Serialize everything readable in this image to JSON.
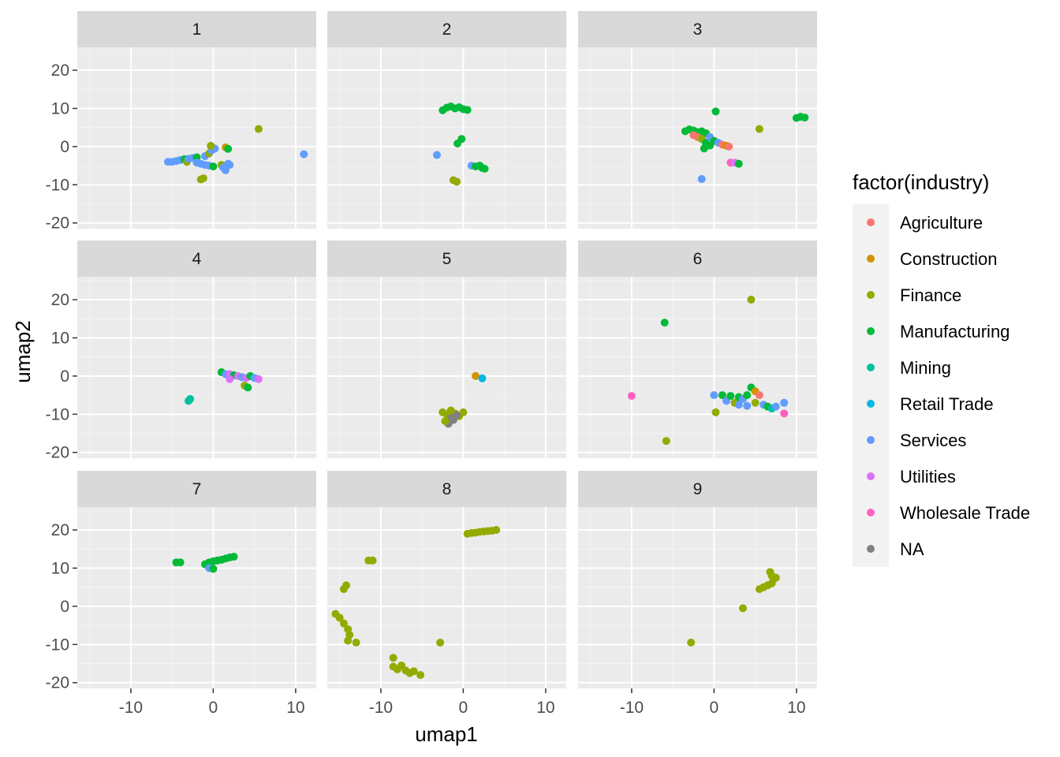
{
  "chart_data": {
    "type": "scatter",
    "facet_variable": "",
    "xlabel": "umap1",
    "ylabel": "umap2",
    "xlim": [
      -16.5,
      12.5
    ],
    "ylim": [
      -21.5,
      26
    ],
    "x_ticks": [
      -10,
      0,
      10
    ],
    "y_ticks": [
      -20,
      -10,
      0,
      10,
      20
    ],
    "grid": true,
    "legend": {
      "title": "factor(industry)",
      "placement": "right",
      "entries": [
        {
          "label": "Agriculture",
          "color": "#F8766D"
        },
        {
          "label": "Construction",
          "color": "#D39200"
        },
        {
          "label": "Finance",
          "color": "#93AA00"
        },
        {
          "label": "Manufacturing",
          "color": "#00BA38"
        },
        {
          "label": "Mining",
          "color": "#00C19F"
        },
        {
          "label": "Retail Trade",
          "color": "#00B9E3"
        },
        {
          "label": "Services",
          "color": "#619CFF"
        },
        {
          "label": "Utilities",
          "color": "#DB72FB"
        },
        {
          "label": "Wholesale Trade",
          "color": "#FF61C3"
        },
        {
          "label": "NA",
          "color": "#808080"
        }
      ]
    },
    "panels": [
      {
        "label": "1",
        "points": [
          {
            "x": -5.5,
            "y": -4,
            "s": "Services"
          },
          {
            "x": -5,
            "y": -4,
            "s": "Services"
          },
          {
            "x": -4.5,
            "y": -3.8,
            "s": "Services"
          },
          {
            "x": -4,
            "y": -3.5,
            "s": "Services"
          },
          {
            "x": -3.5,
            "y": -3.3,
            "s": "Manufacturing"
          },
          {
            "x": -3.2,
            "y": -4,
            "s": "Finance"
          },
          {
            "x": -3,
            "y": -3.2,
            "s": "Services"
          },
          {
            "x": -2.5,
            "y": -3,
            "s": "Services"
          },
          {
            "x": -2,
            "y": -2.8,
            "s": "Manufacturing"
          },
          {
            "x": -2,
            "y": -4.2,
            "s": "Services"
          },
          {
            "x": -1.5,
            "y": -4.5,
            "s": "Services"
          },
          {
            "x": -1,
            "y": -2.5,
            "s": "Services"
          },
          {
            "x": -1,
            "y": -4.8,
            "s": "Services"
          },
          {
            "x": -0.5,
            "y": -5,
            "s": "Services"
          },
          {
            "x": -0.5,
            "y": -1.8,
            "s": "Finance"
          },
          {
            "x": -0.2,
            "y": -1,
            "s": "Services"
          },
          {
            "x": 0,
            "y": -5.2,
            "s": "Manufacturing"
          },
          {
            "x": 0.2,
            "y": -0.5,
            "s": "Services"
          },
          {
            "x": -0.3,
            "y": 0.2,
            "s": "Finance"
          },
          {
            "x": 1,
            "y": -4.8,
            "s": "Finance"
          },
          {
            "x": 1.2,
            "y": -5.5,
            "s": "Services"
          },
          {
            "x": 1.5,
            "y": -6.2,
            "s": "Services"
          },
          {
            "x": 1.8,
            "y": -4.5,
            "s": "Services"
          },
          {
            "x": 1.5,
            "y": -0.2,
            "s": "Construction"
          },
          {
            "x": 1.8,
            "y": -0.6,
            "s": "Manufacturing"
          },
          {
            "x": 2,
            "y": -4.8,
            "s": "Services"
          },
          {
            "x": -1.5,
            "y": -8.6,
            "s": "Finance"
          },
          {
            "x": -1.2,
            "y": -8.3,
            "s": "Finance"
          },
          {
            "x": 5.5,
            "y": 4.6,
            "s": "Finance"
          },
          {
            "x": 11,
            "y": -2,
            "s": "Services"
          }
        ]
      },
      {
        "label": "2",
        "points": [
          {
            "x": -2.5,
            "y": 9.5,
            "s": "Manufacturing"
          },
          {
            "x": -2,
            "y": 10.2,
            "s": "Manufacturing"
          },
          {
            "x": -1.5,
            "y": 10.5,
            "s": "Manufacturing"
          },
          {
            "x": -1,
            "y": 10,
            "s": "Manufacturing"
          },
          {
            "x": -0.5,
            "y": 10.3,
            "s": "Manufacturing"
          },
          {
            "x": 0,
            "y": 9.8,
            "s": "Manufacturing"
          },
          {
            "x": 0.5,
            "y": 9.6,
            "s": "Manufacturing"
          },
          {
            "x": -0.2,
            "y": 2,
            "s": "Manufacturing"
          },
          {
            "x": -0.7,
            "y": 0.8,
            "s": "Manufacturing"
          },
          {
            "x": -3.2,
            "y": -2.2,
            "s": "Services"
          },
          {
            "x": 1,
            "y": -5,
            "s": "Services"
          },
          {
            "x": 1.5,
            "y": -5.2,
            "s": "Manufacturing"
          },
          {
            "x": 2,
            "y": -5,
            "s": "Manufacturing"
          },
          {
            "x": 2.3,
            "y": -5.6,
            "s": "Manufacturing"
          },
          {
            "x": 2.6,
            "y": -5.8,
            "s": "Manufacturing"
          },
          {
            "x": -1.2,
            "y": -8.8,
            "s": "Finance"
          },
          {
            "x": -0.8,
            "y": -9.2,
            "s": "Finance"
          }
        ]
      },
      {
        "label": "3",
        "points": [
          {
            "x": -3.5,
            "y": 4,
            "s": "Manufacturing"
          },
          {
            "x": -3,
            "y": 4.5,
            "s": "Manufacturing"
          },
          {
            "x": -2.5,
            "y": 4.2,
            "s": "Manufacturing"
          },
          {
            "x": -2,
            "y": 3.8,
            "s": "Manufacturing"
          },
          {
            "x": -1.5,
            "y": 4,
            "s": "Manufacturing"
          },
          {
            "x": -1,
            "y": 3.5,
            "s": "Manufacturing"
          },
          {
            "x": -2.5,
            "y": 3,
            "s": "Agriculture"
          },
          {
            "x": -2,
            "y": 2.5,
            "s": "Agriculture"
          },
          {
            "x": -1.5,
            "y": 2,
            "s": "Finance"
          },
          {
            "x": -1,
            "y": 1,
            "s": "Manufacturing"
          },
          {
            "x": -1.2,
            "y": -0.5,
            "s": "Manufacturing"
          },
          {
            "x": -0.5,
            "y": 2.5,
            "s": "Services"
          },
          {
            "x": 0,
            "y": 1.5,
            "s": "Manufacturing"
          },
          {
            "x": 0.5,
            "y": 1,
            "s": "Services"
          },
          {
            "x": 1,
            "y": 0.5,
            "s": "Agriculture"
          },
          {
            "x": 1.5,
            "y": 0.2,
            "s": "Construction"
          },
          {
            "x": 1.8,
            "y": 0,
            "s": "Agriculture"
          },
          {
            "x": -0.5,
            "y": 0.3,
            "s": "Manufacturing"
          },
          {
            "x": 0.2,
            "y": 9.2,
            "s": "Manufacturing"
          },
          {
            "x": 5.5,
            "y": 4.6,
            "s": "Finance"
          },
          {
            "x": 10,
            "y": 7.5,
            "s": "Manufacturing"
          },
          {
            "x": 10.5,
            "y": 7.8,
            "s": "Manufacturing"
          },
          {
            "x": 11,
            "y": 7.6,
            "s": "Manufacturing"
          },
          {
            "x": 2,
            "y": -4.2,
            "s": "Wholesale Trade"
          },
          {
            "x": 2.5,
            "y": -4.2,
            "s": "Utilities"
          },
          {
            "x": 3,
            "y": -4.5,
            "s": "Manufacturing"
          },
          {
            "x": -1.5,
            "y": -8.5,
            "s": "Services"
          }
        ]
      },
      {
        "label": "4",
        "points": [
          {
            "x": 1,
            "y": 1,
            "s": "Manufacturing"
          },
          {
            "x": 1.5,
            "y": 0.5,
            "s": "Services"
          },
          {
            "x": 2,
            "y": 0.5,
            "s": "Utilities"
          },
          {
            "x": 2.5,
            "y": 0.2,
            "s": "Manufacturing"
          },
          {
            "x": 3,
            "y": 0,
            "s": "Utilities"
          },
          {
            "x": 3.5,
            "y": -0.3,
            "s": "Services"
          },
          {
            "x": 4,
            "y": -0.5,
            "s": "Utilities"
          },
          {
            "x": 4.5,
            "y": 0,
            "s": "Manufacturing"
          },
          {
            "x": 5,
            "y": -0.5,
            "s": "Services"
          },
          {
            "x": 5.5,
            "y": -0.8,
            "s": "Utilities"
          },
          {
            "x": 2,
            "y": -0.8,
            "s": "Utilities"
          },
          {
            "x": 3.8,
            "y": -2.5,
            "s": "Finance"
          },
          {
            "x": 4.2,
            "y": -3,
            "s": "Manufacturing"
          },
          {
            "x": -3,
            "y": -6.5,
            "s": "Mining"
          },
          {
            "x": -2.8,
            "y": -6,
            "s": "Mining"
          }
        ]
      },
      {
        "label": "5",
        "points": [
          {
            "x": -2.5,
            "y": -9.5,
            "s": "Finance"
          },
          {
            "x": -2,
            "y": -10,
            "s": "Finance"
          },
          {
            "x": -1.5,
            "y": -9,
            "s": "Finance"
          },
          {
            "x": -1,
            "y": -9.8,
            "s": "Finance"
          },
          {
            "x": -0.5,
            "y": -10.5,
            "s": "Finance"
          },
          {
            "x": 0,
            "y": -9.5,
            "s": "Finance"
          },
          {
            "x": -1.5,
            "y": -11,
            "s": "NA"
          },
          {
            "x": -1.8,
            "y": -12.5,
            "s": "NA"
          },
          {
            "x": -1.2,
            "y": -11.5,
            "s": "NA"
          },
          {
            "x": -2.2,
            "y": -11.8,
            "s": "Finance"
          },
          {
            "x": -0.8,
            "y": -10.2,
            "s": "NA"
          },
          {
            "x": 1.5,
            "y": 0,
            "s": "Construction"
          },
          {
            "x": 2.3,
            "y": -0.6,
            "s": "Retail Trade"
          }
        ]
      },
      {
        "label": "6",
        "points": [
          {
            "x": 4.5,
            "y": 20,
            "s": "Finance"
          },
          {
            "x": -6,
            "y": 14,
            "s": "Manufacturing"
          },
          {
            "x": -10,
            "y": -5.2,
            "s": "Wholesale Trade"
          },
          {
            "x": 0,
            "y": -5,
            "s": "Services"
          },
          {
            "x": 1,
            "y": -5,
            "s": "Manufacturing"
          },
          {
            "x": 1.5,
            "y": -6.5,
            "s": "Services"
          },
          {
            "x": 2,
            "y": -5.2,
            "s": "Manufacturing"
          },
          {
            "x": 2.5,
            "y": -7,
            "s": "Finance"
          },
          {
            "x": 3,
            "y": -5.5,
            "s": "Manufacturing"
          },
          {
            "x": 3.5,
            "y": -6,
            "s": "Services"
          },
          {
            "x": 4,
            "y": -5,
            "s": "Manufacturing"
          },
          {
            "x": 4.5,
            "y": -3,
            "s": "Manufacturing"
          },
          {
            "x": 5,
            "y": -4,
            "s": "Construction"
          },
          {
            "x": 5.5,
            "y": -5,
            "s": "Agriculture"
          },
          {
            "x": 6,
            "y": -7.5,
            "s": "Services"
          },
          {
            "x": 6.5,
            "y": -8,
            "s": "Manufacturing"
          },
          {
            "x": 7,
            "y": -8.5,
            "s": "Mining"
          },
          {
            "x": 7.5,
            "y": -8,
            "s": "Services"
          },
          {
            "x": 8.5,
            "y": -7,
            "s": "Services"
          },
          {
            "x": 8.5,
            "y": -9.8,
            "s": "Wholesale Trade"
          },
          {
            "x": 3,
            "y": -7.5,
            "s": "Services"
          },
          {
            "x": 4,
            "y": -7.8,
            "s": "Services"
          },
          {
            "x": 5,
            "y": -7,
            "s": "Finance"
          },
          {
            "x": 0.2,
            "y": -9.5,
            "s": "Finance"
          },
          {
            "x": -5.8,
            "y": -17,
            "s": "Finance"
          }
        ]
      },
      {
        "label": "7",
        "points": [
          {
            "x": -4.5,
            "y": 11.5,
            "s": "Manufacturing"
          },
          {
            "x": -4,
            "y": 11.5,
            "s": "Manufacturing"
          },
          {
            "x": -1,
            "y": 11,
            "s": "Manufacturing"
          },
          {
            "x": -0.5,
            "y": 11.5,
            "s": "Manufacturing"
          },
          {
            "x": 0,
            "y": 11.8,
            "s": "Manufacturing"
          },
          {
            "x": 0.5,
            "y": 12,
            "s": "Manufacturing"
          },
          {
            "x": 1,
            "y": 12.2,
            "s": "Manufacturing"
          },
          {
            "x": 1.5,
            "y": 12.5,
            "s": "Manufacturing"
          },
          {
            "x": 2,
            "y": 12.8,
            "s": "Manufacturing"
          },
          {
            "x": 2.5,
            "y": 13,
            "s": "Manufacturing"
          },
          {
            "x": -0.5,
            "y": 10,
            "s": "Services"
          },
          {
            "x": 0,
            "y": 9.8,
            "s": "Manufacturing"
          }
        ]
      },
      {
        "label": "8",
        "points": [
          {
            "x": 0.5,
            "y": 19,
            "s": "Finance"
          },
          {
            "x": 1,
            "y": 19.2,
            "s": "Finance"
          },
          {
            "x": 1.5,
            "y": 19.3,
            "s": "Finance"
          },
          {
            "x": 2,
            "y": 19.5,
            "s": "Finance"
          },
          {
            "x": 2.5,
            "y": 19.6,
            "s": "Finance"
          },
          {
            "x": 3,
            "y": 19.7,
            "s": "Finance"
          },
          {
            "x": 3.5,
            "y": 19.8,
            "s": "Finance"
          },
          {
            "x": 4,
            "y": 20,
            "s": "Finance"
          },
          {
            "x": -11.5,
            "y": 12,
            "s": "Finance"
          },
          {
            "x": -11,
            "y": 12,
            "s": "Finance"
          },
          {
            "x": -14.5,
            "y": 4.5,
            "s": "Finance"
          },
          {
            "x": -14.2,
            "y": 5.5,
            "s": "Finance"
          },
          {
            "x": -15.5,
            "y": -2,
            "s": "Finance"
          },
          {
            "x": -15,
            "y": -3,
            "s": "Finance"
          },
          {
            "x": -14.5,
            "y": -4.5,
            "s": "Finance"
          },
          {
            "x": -14,
            "y": -6,
            "s": "Finance"
          },
          {
            "x": -13.8,
            "y": -7.5,
            "s": "Finance"
          },
          {
            "x": -14,
            "y": -9,
            "s": "Finance"
          },
          {
            "x": -13,
            "y": -9.5,
            "s": "Finance"
          },
          {
            "x": -8.5,
            "y": -13.5,
            "s": "Finance"
          },
          {
            "x": -8.5,
            "y": -15.8,
            "s": "Finance"
          },
          {
            "x": -8,
            "y": -16.5,
            "s": "Finance"
          },
          {
            "x": -7.5,
            "y": -15.5,
            "s": "Finance"
          },
          {
            "x": -7,
            "y": -16.8,
            "s": "Finance"
          },
          {
            "x": -6.5,
            "y": -17.5,
            "s": "Finance"
          },
          {
            "x": -6,
            "y": -17,
            "s": "Finance"
          },
          {
            "x": -5.2,
            "y": -18,
            "s": "Finance"
          },
          {
            "x": -2.8,
            "y": -9.5,
            "s": "Finance"
          }
        ]
      },
      {
        "label": "9",
        "points": [
          {
            "x": 5.5,
            "y": 4.5,
            "s": "Finance"
          },
          {
            "x": 6,
            "y": 5,
            "s": "Finance"
          },
          {
            "x": 6.5,
            "y": 5.5,
            "s": "Finance"
          },
          {
            "x": 7,
            "y": 6,
            "s": "Finance"
          },
          {
            "x": 7.2,
            "y": 7,
            "s": "Finance"
          },
          {
            "x": 7,
            "y": 8,
            "s": "Finance"
          },
          {
            "x": 6.8,
            "y": 9,
            "s": "Finance"
          },
          {
            "x": 7.5,
            "y": 7.5,
            "s": "Finance"
          },
          {
            "x": 3.5,
            "y": -0.5,
            "s": "Finance"
          },
          {
            "x": -2.8,
            "y": -9.5,
            "s": "Finance"
          }
        ]
      }
    ]
  }
}
